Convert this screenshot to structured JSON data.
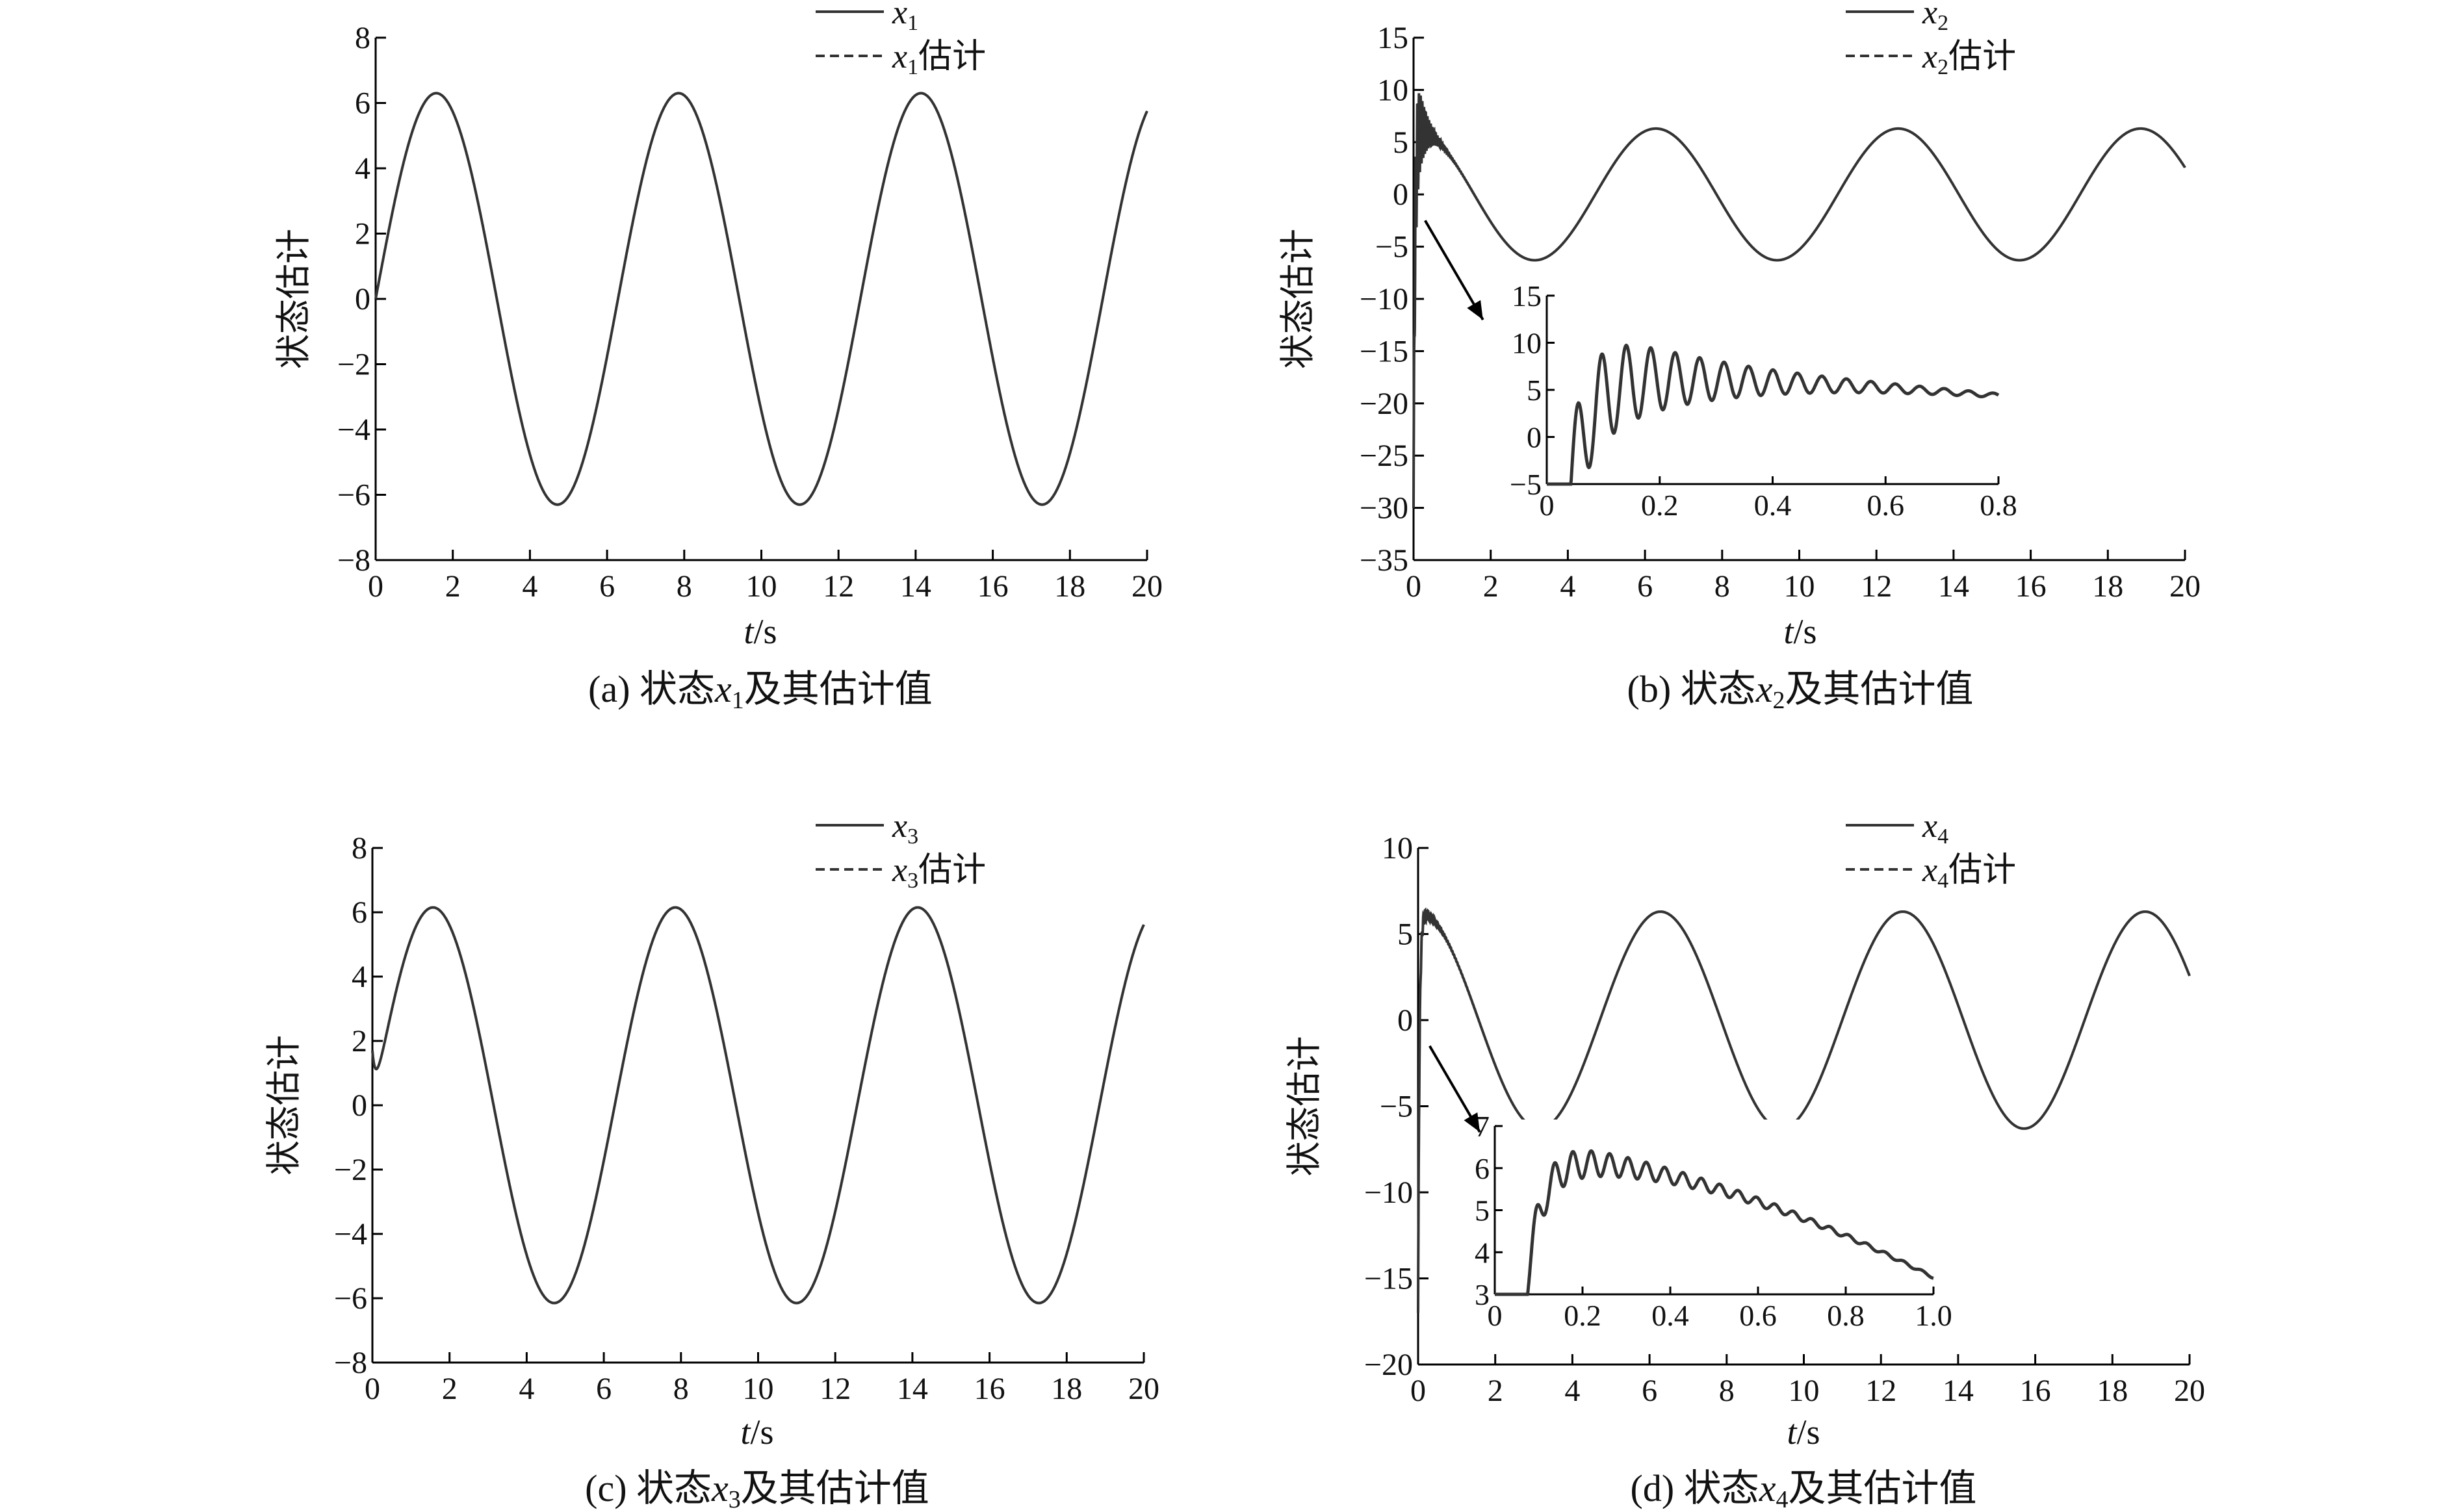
{
  "colors": {
    "line": "#333333",
    "axis": "#000000",
    "text": "#111111"
  },
  "chart_data": [
    {
      "id": "a",
      "type": "line",
      "caption_prefix": "(a) 状态",
      "caption_var": "x",
      "caption_sub": "1",
      "caption_suffix": "及其估计值",
      "xlabel_italic": "t",
      "xlabel_rest": "/s",
      "ylabel": "状态估计",
      "xlim": [
        0,
        20
      ],
      "ylim": [
        -8,
        8
      ],
      "xticks": [
        0,
        2,
        4,
        6,
        8,
        10,
        12,
        14,
        16,
        18,
        20
      ],
      "yticks": [
        -8,
        -6,
        -4,
        -2,
        0,
        2,
        4,
        6,
        8
      ],
      "xticks_text": [
        "0",
        "2",
        "4",
        "6",
        "8",
        "10",
        "12",
        "14",
        "16",
        "18",
        "20"
      ],
      "yticks_text": [
        "−8",
        "−6",
        "−4",
        "−2",
        "0",
        "2",
        "4",
        "6",
        "8"
      ],
      "legend": [
        {
          "var": "x",
          "sub": "1",
          "suffix": "",
          "style": "solid"
        },
        {
          "var": "x",
          "sub": "1",
          "suffix": "估计",
          "style": "dashed"
        }
      ],
      "series": [
        {
          "name": "x1",
          "model": {
            "kind": "sine",
            "amplitude": 6.3,
            "omega": 1.0,
            "phase": 0
          }
        },
        {
          "name": "x1估计",
          "model": {
            "kind": "sine",
            "amplitude": 6.3,
            "omega": 1.0,
            "phase": 0
          }
        }
      ]
    },
    {
      "id": "b",
      "type": "line",
      "caption_prefix": "(b) 状态",
      "caption_var": "x",
      "caption_sub": "2",
      "caption_suffix": "及其估计值",
      "xlabel_italic": "t",
      "xlabel_rest": "/s",
      "ylabel": "状态估计",
      "xlim": [
        0,
        20
      ],
      "ylim": [
        -35,
        15
      ],
      "xticks": [
        0,
        2,
        4,
        6,
        8,
        10,
        12,
        14,
        16,
        18,
        20
      ],
      "yticks": [
        -35,
        -30,
        -25,
        -20,
        -15,
        -10,
        -5,
        0,
        5,
        10,
        15
      ],
      "xticks_text": [
        "0",
        "2",
        "4",
        "6",
        "8",
        "10",
        "12",
        "14",
        "16",
        "18",
        "20"
      ],
      "yticks_text": [
        "−35",
        "−30",
        "−25",
        "−20",
        "−15",
        "−10",
        "−5",
        "0",
        "5",
        "10",
        "15"
      ],
      "legend": [
        {
          "var": "x",
          "sub": "2",
          "suffix": "",
          "style": "solid"
        },
        {
          "var": "x",
          "sub": "2",
          "suffix": "估计",
          "style": "dashed"
        }
      ],
      "series": [
        {
          "name": "x2",
          "model": {
            "kind": "cosine_transient",
            "amplitude": 6.3,
            "omega": 1.0,
            "start": -30,
            "osc_amp": 8,
            "osc_omega": 145,
            "osc_decay": 4.5
          }
        },
        {
          "name": "x2估计",
          "model": {
            "kind": "cosine_transient",
            "amplitude": 6.3,
            "omega": 1.0,
            "start": -30,
            "osc_amp": 8,
            "osc_omega": 145,
            "osc_decay": 4.5
          }
        }
      ],
      "inset": {
        "xlim": [
          0,
          0.8
        ],
        "ylim": [
          -5,
          15
        ],
        "xticks": [
          0,
          0.2,
          0.4,
          0.6,
          0.8
        ],
        "yticks": [
          -5,
          0,
          5,
          10,
          15
        ],
        "xticks_text": [
          "0",
          "0.2",
          "0.4",
          "0.6",
          "0.8"
        ],
        "yticks_text": [
          "−5",
          "0",
          "5",
          "10",
          "15"
        ],
        "arrow_from": [
          0.3,
          -2.5
        ],
        "arrow_to": [
          1.8,
          -12
        ]
      }
    },
    {
      "id": "c",
      "type": "line",
      "caption_prefix": "(c) 状态",
      "caption_var": "x",
      "caption_sub": "3",
      "caption_suffix": "及其估计值",
      "xlabel_italic": "t",
      "xlabel_rest": "/s",
      "ylabel": "状态估计",
      "xlim": [
        0,
        20
      ],
      "ylim": [
        -8,
        8
      ],
      "xticks": [
        0,
        2,
        4,
        6,
        8,
        10,
        12,
        14,
        16,
        18,
        20
      ],
      "yticks": [
        -8,
        -6,
        -4,
        -2,
        0,
        2,
        4,
        6,
        8
      ],
      "xticks_text": [
        "0",
        "2",
        "4",
        "6",
        "8",
        "10",
        "12",
        "14",
        "16",
        "18",
        "20"
      ],
      "yticks_text": [
        "−8",
        "−6",
        "−4",
        "−2",
        "0",
        "2",
        "4",
        "6",
        "8"
      ],
      "legend": [
        {
          "var": "x",
          "sub": "3",
          "suffix": "",
          "style": "solid"
        },
        {
          "var": "x",
          "sub": "3",
          "suffix": "估计",
          "style": "dashed"
        }
      ],
      "series": [
        {
          "name": "x3",
          "model": {
            "kind": "sine_bump",
            "amplitude": 6.15,
            "omega": 1.0,
            "bump": 1.7,
            "bump_decay": 12
          }
        },
        {
          "name": "x3估计",
          "model": {
            "kind": "sine_bump",
            "amplitude": 6.15,
            "omega": 1.0,
            "bump": 1.7,
            "bump_decay": 12
          }
        }
      ]
    },
    {
      "id": "d",
      "type": "line",
      "caption_prefix": "(d) 状态",
      "caption_var": "x",
      "caption_sub": "4",
      "caption_suffix": "及其估计值",
      "xlabel_italic": "t",
      "xlabel_rest": "/s",
      "ylabel": "状态估计",
      "xlim": [
        0,
        20
      ],
      "ylim": [
        -20,
        10
      ],
      "xticks": [
        0,
        2,
        4,
        6,
        8,
        10,
        12,
        14,
        16,
        18,
        20
      ],
      "yticks": [
        -20,
        -15,
        -10,
        -5,
        0,
        5,
        10
      ],
      "xticks_text": [
        "0",
        "2",
        "4",
        "6",
        "8",
        "10",
        "12",
        "14",
        "16",
        "18",
        "20"
      ],
      "yticks_text": [
        "−20",
        "−15",
        "−10",
        "−5",
        "0",
        "5",
        "10"
      ],
      "legend": [
        {
          "var": "x",
          "sub": "4",
          "suffix": "",
          "style": "solid"
        },
        {
          "var": "x",
          "sub": "4",
          "suffix": "估计",
          "style": "dashed"
        }
      ],
      "series": [
        {
          "name": "x4",
          "model": {
            "kind": "cosine_transient",
            "amplitude": 6.3,
            "omega": 1.0,
            "start": -17,
            "osc_amp": 0.6,
            "osc_omega": 150,
            "osc_decay": 3.0
          }
        },
        {
          "name": "x4估计",
          "model": {
            "kind": "cosine_transient",
            "amplitude": 6.3,
            "omega": 1.0,
            "start": -17,
            "osc_amp": 0.6,
            "osc_omega": 150,
            "osc_decay": 3.0
          }
        }
      ],
      "inset": {
        "xlim": [
          0,
          1.0
        ],
        "ylim": [
          3,
          7
        ],
        "xticks": [
          0,
          0.2,
          0.4,
          0.6,
          0.8,
          1.0
        ],
        "yticks": [
          3,
          4,
          5,
          6,
          7
        ],
        "xticks_text": [
          "0",
          "0.2",
          "0.4",
          "0.6",
          "0.8",
          "1.0"
        ],
        "yticks_text": [
          "3",
          "4",
          "5",
          "6",
          "7"
        ],
        "arrow_from": [
          0.3,
          -1.5
        ],
        "arrow_to": [
          1.6,
          -6.5
        ]
      }
    }
  ]
}
